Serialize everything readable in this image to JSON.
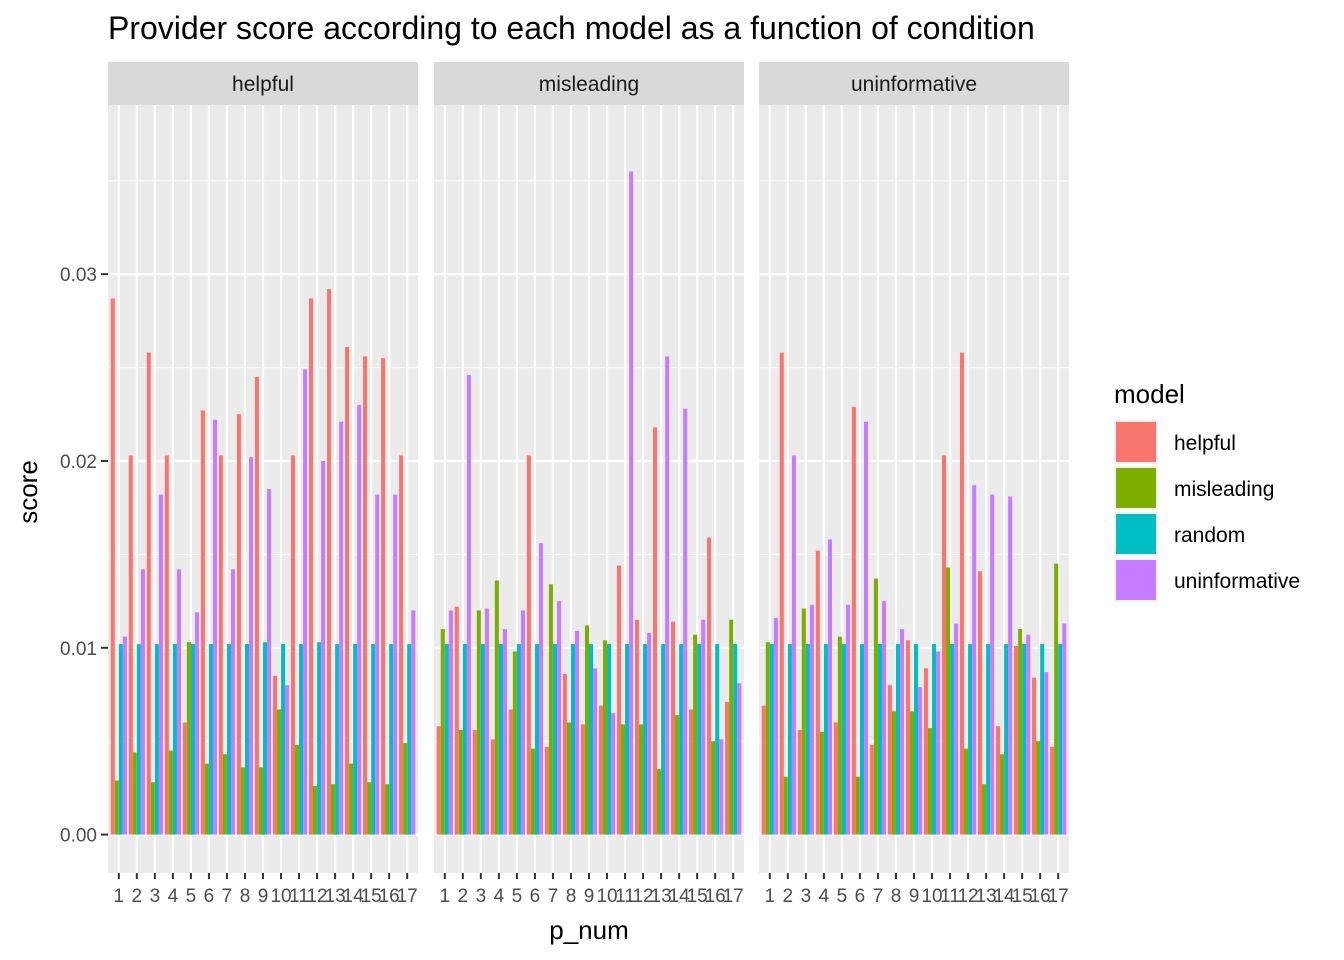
{
  "chart_data": {
    "type": "bar",
    "title": "Provider score according to each model as a function of condition",
    "xlabel": "p_num",
    "ylabel": "score",
    "ylim": [
      0,
      0.037
    ],
    "y_ticks": [
      0.0,
      0.01,
      0.02,
      0.03
    ],
    "y_tick_labels": [
      "0.00",
      "0.01",
      "0.02",
      "0.03"
    ],
    "categories": [
      "1",
      "2",
      "3",
      "4",
      "5",
      "6",
      "7",
      "8",
      "9",
      "10",
      "11",
      "12",
      "13",
      "14",
      "15",
      "16",
      "17"
    ],
    "legend": {
      "title": "model",
      "position": "right",
      "entries": [
        {
          "name": "helpful",
          "color": "#F8766D"
        },
        {
          "name": "misleading",
          "color": "#7CAE00"
        },
        {
          "name": "random",
          "color": "#00BFC4"
        },
        {
          "name": "uninformative",
          "color": "#C77CFF"
        }
      ]
    },
    "panels": [
      {
        "condition": "helpful",
        "series": [
          {
            "name": "helpful",
            "values": [
              0.0287,
              0.0203,
              0.0258,
              0.0203,
              0.006,
              0.0227,
              0.0203,
              0.0225,
              0.0245,
              0.0085,
              0.0203,
              0.0287,
              0.0292,
              0.0261,
              0.0256,
              0.0255,
              0.0203
            ]
          },
          {
            "name": "misleading",
            "values": [
              0.0029,
              0.0044,
              0.0028,
              0.0045,
              0.0103,
              0.0038,
              0.0043,
              0.0036,
              0.0036,
              0.0067,
              0.0048,
              0.0026,
              0.0027,
              0.0038,
              0.0028,
              0.0027,
              0.0049
            ]
          },
          {
            "name": "random",
            "values": [
              0.0102,
              0.0102,
              0.0102,
              0.0102,
              0.0102,
              0.0102,
              0.0102,
              0.0102,
              0.0103,
              0.0102,
              0.0102,
              0.0103,
              0.0102,
              0.0102,
              0.0102,
              0.0102,
              0.0102
            ]
          },
          {
            "name": "uninformative",
            "values": [
              0.0106,
              0.0142,
              0.0182,
              0.0142,
              0.0119,
              0.0222,
              0.0142,
              0.0202,
              0.0185,
              0.008,
              0.0249,
              0.02,
              0.0221,
              0.023,
              0.0182,
              0.0182,
              0.012
            ]
          }
        ]
      },
      {
        "condition": "misleading",
        "series": [
          {
            "name": "helpful",
            "values": [
              0.0058,
              0.0122,
              0.0056,
              0.0051,
              0.0067,
              0.0203,
              0.0047,
              0.0086,
              0.0059,
              0.0069,
              0.0144,
              0.0115,
              0.0218,
              0.0114,
              0.0067,
              0.0159,
              0.0071
            ]
          },
          {
            "name": "misleading",
            "values": [
              0.011,
              0.0056,
              0.012,
              0.0136,
              0.0098,
              0.0046,
              0.0134,
              0.006,
              0.0112,
              0.0104,
              0.0059,
              0.0059,
              0.0035,
              0.0064,
              0.0107,
              0.005,
              0.0115
            ]
          },
          {
            "name": "random",
            "values": [
              0.0102,
              0.0102,
              0.0102,
              0.0102,
              0.0102,
              0.0102,
              0.0102,
              0.0102,
              0.0102,
              0.0102,
              0.0102,
              0.0102,
              0.0102,
              0.0102,
              0.0102,
              0.0102,
              0.0102
            ]
          },
          {
            "name": "uninformative",
            "values": [
              0.012,
              0.0246,
              0.0121,
              0.011,
              0.012,
              0.0156,
              0.0125,
              0.0109,
              0.0089,
              0.0065,
              0.0355,
              0.0108,
              0.0256,
              0.0228,
              0.0115,
              0.0051,
              0.0081
            ]
          }
        ]
      },
      {
        "condition": "uninformative",
        "series": [
          {
            "name": "helpful",
            "values": [
              0.0069,
              0.0258,
              0.0056,
              0.0152,
              0.006,
              0.0229,
              0.0048,
              0.008,
              0.0104,
              0.0089,
              0.0203,
              0.0258,
              0.0141,
              0.0058,
              0.0101,
              0.0084,
              0.0047
            ]
          },
          {
            "name": "misleading",
            "values": [
              0.0103,
              0.0031,
              0.0121,
              0.0055,
              0.0106,
              0.0031,
              0.0137,
              0.0066,
              0.0066,
              0.0057,
              0.0143,
              0.0046,
              0.0027,
              0.0043,
              0.011,
              0.005,
              0.0145
            ]
          },
          {
            "name": "random",
            "values": [
              0.0102,
              0.0102,
              0.0102,
              0.0102,
              0.0102,
              0.0102,
              0.0102,
              0.0102,
              0.0102,
              0.0102,
              0.0102,
              0.0102,
              0.0102,
              0.0102,
              0.0102,
              0.0102,
              0.0102
            ]
          },
          {
            "name": "uninformative",
            "values": [
              0.0116,
              0.0203,
              0.0123,
              0.0158,
              0.0123,
              0.0221,
              0.0125,
              0.011,
              0.0079,
              0.0098,
              0.0113,
              0.0187,
              0.0182,
              0.0181,
              0.0107,
              0.0087,
              0.0113
            ]
          }
        ]
      }
    ]
  }
}
